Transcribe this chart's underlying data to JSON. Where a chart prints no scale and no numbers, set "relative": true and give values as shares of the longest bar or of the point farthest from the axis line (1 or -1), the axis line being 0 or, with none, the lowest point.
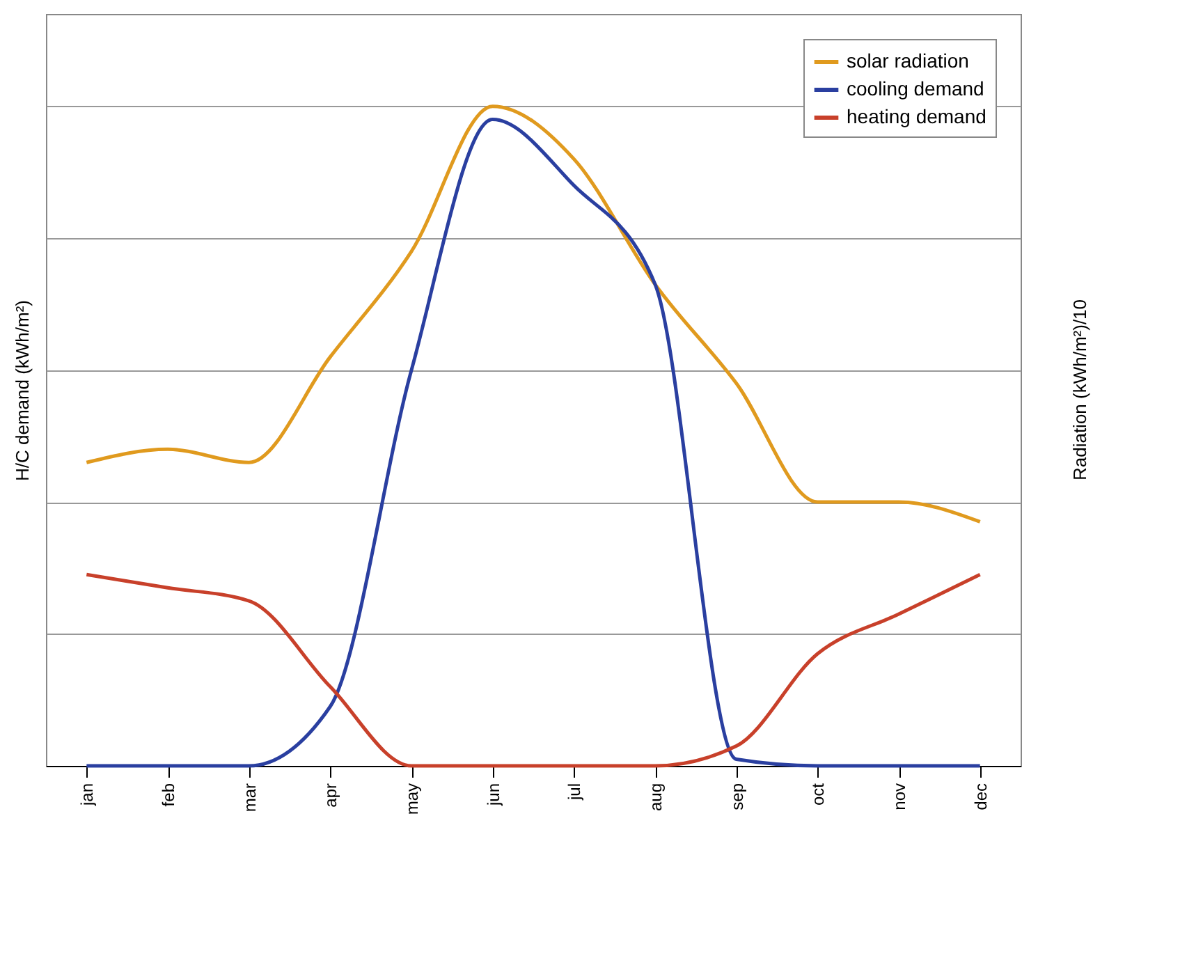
{
  "chart_data": {
    "type": "line",
    "relative": true,
    "ylabel": "H/C demand (kWh/m²)",
    "y2label": "Radiation (kWh/m²)/10",
    "categories": [
      "jan",
      "feb",
      "mar",
      "apr",
      "may",
      "jun",
      "jul",
      "aug",
      "sep",
      "oct",
      "nov",
      "dec"
    ],
    "series": [
      {
        "name": "solar radiation",
        "color": "#e09a1e",
        "values": [
          0.46,
          0.48,
          0.46,
          0.62,
          0.78,
          1.0,
          0.92,
          0.73,
          0.58,
          0.4,
          0.4,
          0.37
        ]
      },
      {
        "name": "cooling demand",
        "color": "#2a3fa0",
        "values": [
          0,
          0,
          0,
          0.09,
          0.6,
          0.98,
          0.88,
          0.73,
          0.01,
          0,
          0,
          0
        ]
      },
      {
        "name": "heating demand",
        "color": "#c8402a",
        "values": [
          0.29,
          0.27,
          0.25,
          0.12,
          0,
          0,
          0,
          0,
          0.03,
          0.17,
          0.23,
          0.29
        ]
      }
    ],
    "grid": "y",
    "legend": "top right",
    "marker": "none",
    "line_style": "solid"
  }
}
